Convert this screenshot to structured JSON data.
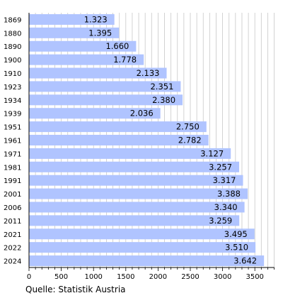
{
  "chart_data": {
    "type": "bar",
    "orientation": "horizontal",
    "categories": [
      "1869",
      "1880",
      "1890",
      "1900",
      "1910",
      "1923",
      "1934",
      "1939",
      "1951",
      "1961",
      "1971",
      "1981",
      "1991",
      "2001",
      "2006",
      "2011",
      "2021",
      "2022",
      "2024"
    ],
    "values": [
      1323,
      1395,
      1660,
      1778,
      2133,
      2351,
      2380,
      2036,
      2750,
      2782,
      3127,
      3257,
      3317,
      3388,
      3340,
      3259,
      3495,
      3510,
      3642
    ],
    "value_labels": [
      "1.323",
      "1.395",
      "1.660",
      "1.778",
      "2.133",
      "2.351",
      "2.380",
      "2.036",
      "2.750",
      "2.782",
      "3.127",
      "3.257",
      "3.317",
      "3.388",
      "3.340",
      "3.259",
      "3.495",
      "3.510",
      "3.642"
    ],
    "xlim": [
      0,
      3800
    ],
    "x_ticks": [
      0,
      500,
      1000,
      1500,
      2000,
      2500,
      3000,
      3500
    ],
    "grid": true,
    "bar_color": "#b0c4ff",
    "grid_color": "#c8c8c8"
  },
  "source": "Quelle: Statistik Austria"
}
